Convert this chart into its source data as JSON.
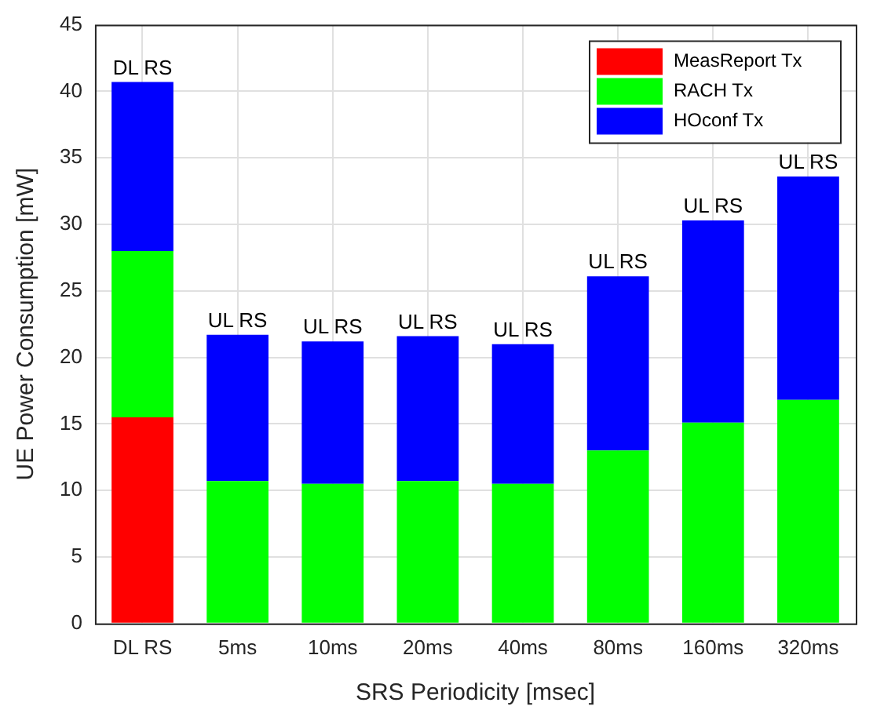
{
  "chart_data": {
    "type": "bar",
    "stacked": true,
    "xlabel": "SRS Periodicity [msec]",
    "ylabel": "UE Power Consumption [mW]",
    "categories": [
      "DL RS",
      "5ms",
      "10ms",
      "20ms",
      "40ms",
      "80ms",
      "160ms",
      "320ms"
    ],
    "series": [
      {
        "name": "MeasReport Tx",
        "color": "#ff0000",
        "values": [
          15.5,
          null,
          null,
          null,
          null,
          null,
          null,
          null
        ]
      },
      {
        "name": "RACH Tx",
        "color": "#00ff00",
        "values": [
          12.5,
          10.7,
          10.5,
          10.7,
          10.5,
          13.0,
          15.1,
          16.8
        ]
      },
      {
        "name": "HOconf Tx",
        "color": "#0000ff",
        "values": [
          12.7,
          11.0,
          10.7,
          10.9,
          10.5,
          13.1,
          15.2,
          16.8
        ]
      }
    ],
    "ylim": [
      0,
      45
    ],
    "yticks": [
      0,
      5,
      10,
      15,
      20,
      25,
      30,
      35,
      40,
      45
    ],
    "grid": true,
    "legend": "top right",
    "annotations": [
      {
        "text": "DL RS",
        "x": "DL RS",
        "y": 40.7
      },
      {
        "text": "UL RS",
        "x": "5ms",
        "y": 21.7
      },
      {
        "text": "UL RS",
        "x": "10ms",
        "y": 21.2
      },
      {
        "text": "UL RS",
        "x": "20ms",
        "y": 21.6
      },
      {
        "text": "UL RS",
        "x": "40ms",
        "y": 21.0
      },
      {
        "text": "UL RS",
        "x": "80ms",
        "y": 26.1
      },
      {
        "text": "UL RS",
        "x": "160ms",
        "y": 30.3
      },
      {
        "text": "UL RS",
        "x": "320ms",
        "y": 33.6
      }
    ]
  }
}
